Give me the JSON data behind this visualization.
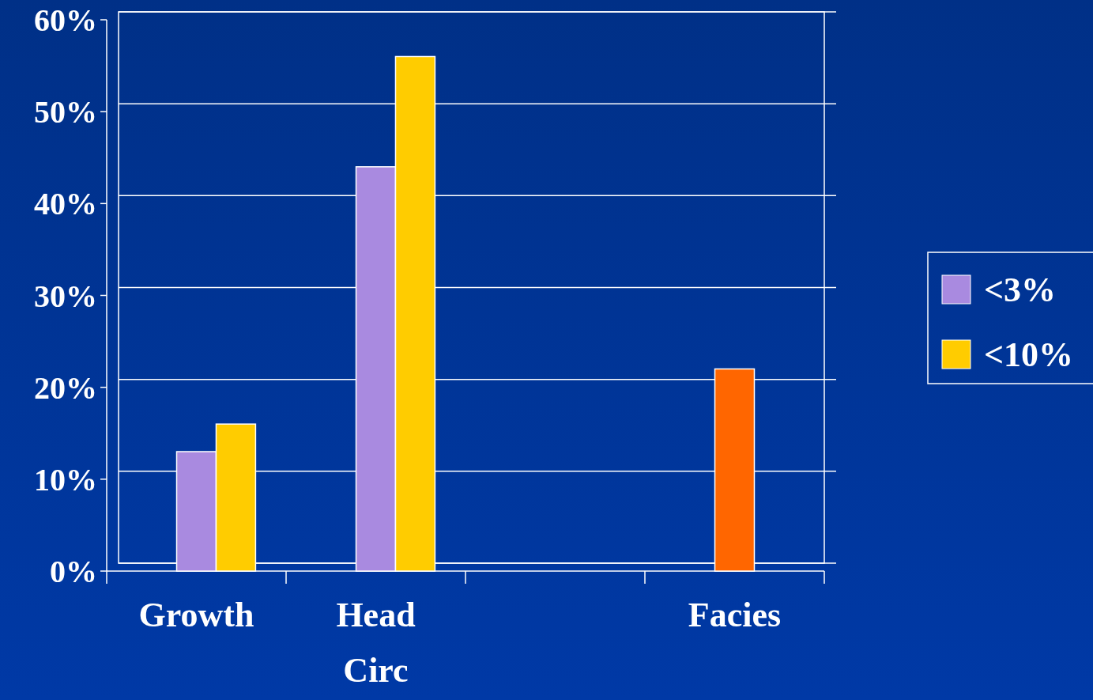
{
  "chart_data": {
    "type": "bar",
    "categories": [
      "Growth",
      "Head Circ",
      null,
      "Facies"
    ],
    "series": [
      {
        "name": "<3%",
        "color": "#a98ae0",
        "colors": [
          "#a98ae0",
          "#a98ae0",
          null,
          "#ff6600"
        ],
        "values": [
          13,
          44,
          null,
          22
        ]
      },
      {
        "name": "<10%",
        "color": "#ffcc00",
        "values": [
          16,
          56,
          null,
          null
        ]
      }
    ],
    "ylim": [
      0,
      60
    ],
    "yticks": [
      {
        "value": 0,
        "label": "0%"
      },
      {
        "value": 10,
        "label": "10%"
      },
      {
        "value": 20,
        "label": "20%"
      },
      {
        "value": 30,
        "label": "30%"
      },
      {
        "value": 40,
        "label": "40%"
      },
      {
        "value": 50,
        "label": "50%"
      },
      {
        "value": 60,
        "label": "60%"
      }
    ],
    "grid": "y",
    "legend": "right"
  }
}
